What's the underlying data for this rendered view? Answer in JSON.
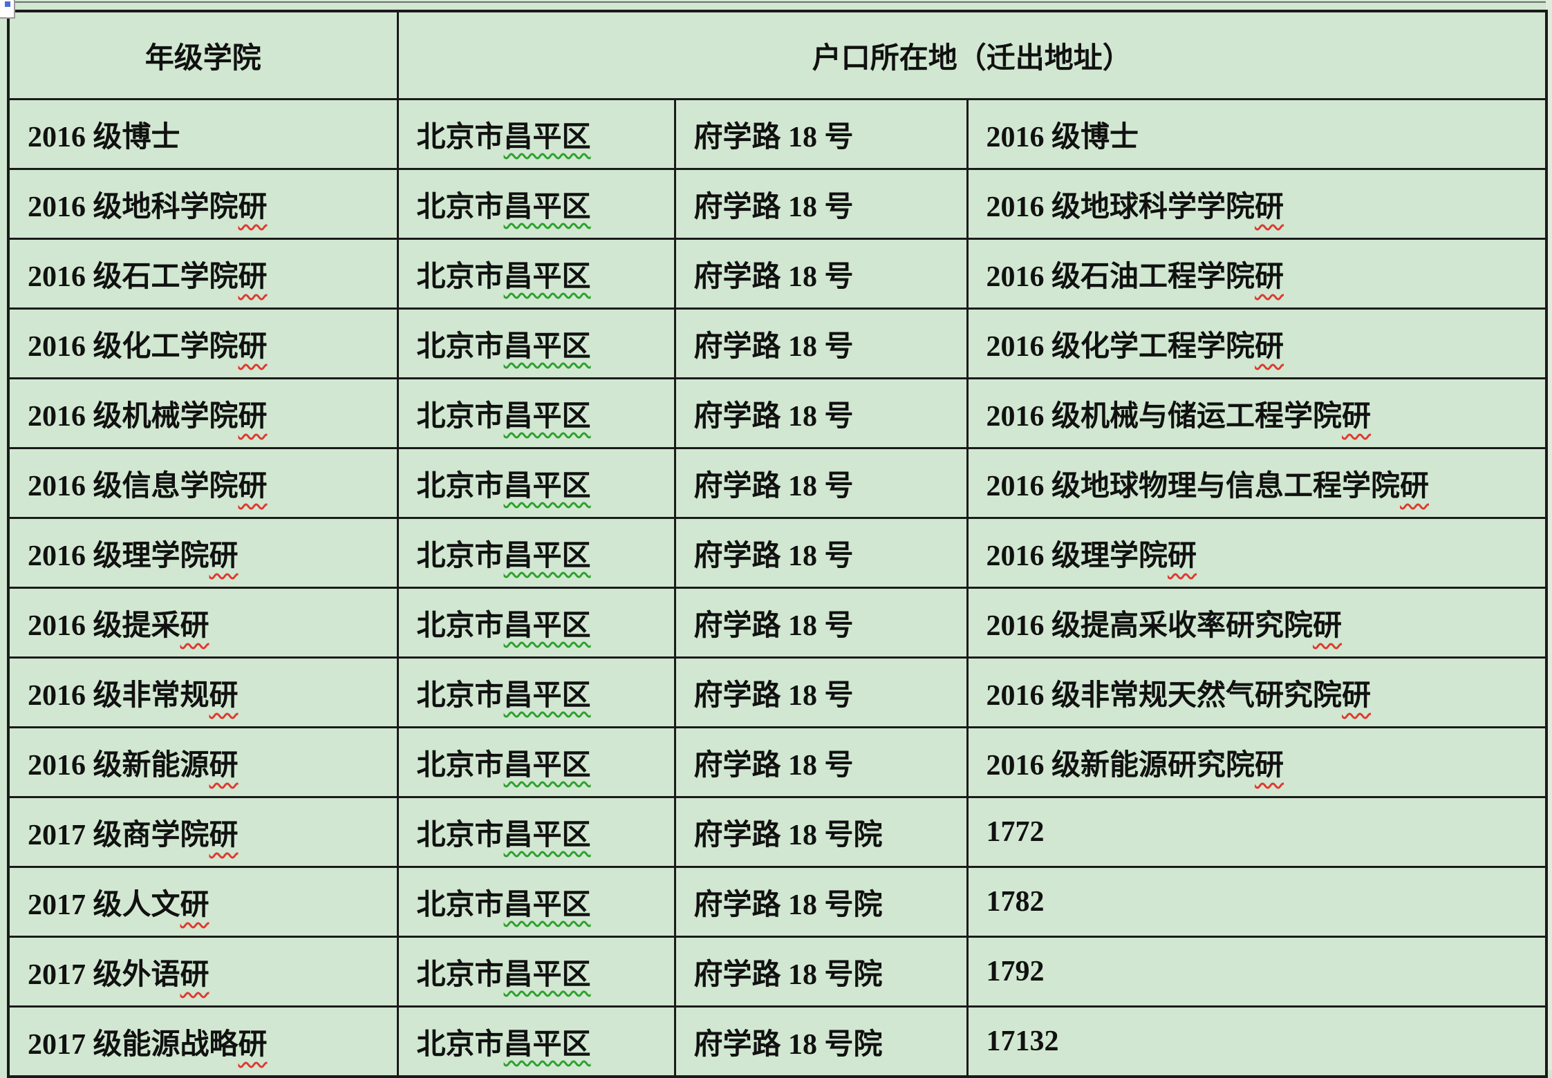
{
  "colors": {
    "page_background": "#d1e7d1",
    "table_border": "#1a1a1a",
    "text": "#111111",
    "spellcheck_red": "#e0392e",
    "grammar_green": "#2da12d",
    "corner_artifact_fill": "#ffffff",
    "corner_artifact_dot": "#4a6fd4"
  },
  "table": {
    "header": {
      "grade_college": "年级学院",
      "residence": "户口所在地（迁出地址）"
    },
    "rows": [
      {
        "grade_college": [
          {
            "text": "2016 级博士",
            "mark": ""
          }
        ],
        "city_district": [
          {
            "text": "北京市",
            "mark": ""
          },
          {
            "text": "昌平区",
            "mark": "green"
          }
        ],
        "street": [
          {
            "text": "府学路 18 号",
            "mark": ""
          }
        ],
        "unit": [
          {
            "text": "2016 级博士",
            "mark": ""
          }
        ]
      },
      {
        "grade_college": [
          {
            "text": "2016 级地科学院",
            "mark": ""
          },
          {
            "text": "研",
            "mark": "red"
          }
        ],
        "city_district": [
          {
            "text": "北京市",
            "mark": ""
          },
          {
            "text": "昌平区",
            "mark": "green"
          }
        ],
        "street": [
          {
            "text": "府学路 18 号",
            "mark": ""
          }
        ],
        "unit": [
          {
            "text": "2016 级地球科学学院",
            "mark": ""
          },
          {
            "text": "研",
            "mark": "red"
          }
        ]
      },
      {
        "grade_college": [
          {
            "text": "2016 级石工学院",
            "mark": ""
          },
          {
            "text": "研",
            "mark": "red"
          }
        ],
        "city_district": [
          {
            "text": "北京市",
            "mark": ""
          },
          {
            "text": "昌平区",
            "mark": "green"
          }
        ],
        "street": [
          {
            "text": "府学路 18 号",
            "mark": ""
          }
        ],
        "unit": [
          {
            "text": "2016 级石油工程学院",
            "mark": ""
          },
          {
            "text": "研",
            "mark": "red"
          }
        ]
      },
      {
        "grade_college": [
          {
            "text": "2016 级化工学院",
            "mark": ""
          },
          {
            "text": "研",
            "mark": "red"
          }
        ],
        "city_district": [
          {
            "text": "北京市",
            "mark": ""
          },
          {
            "text": "昌平区",
            "mark": "green"
          }
        ],
        "street": [
          {
            "text": "府学路 18 号",
            "mark": ""
          }
        ],
        "unit": [
          {
            "text": "2016 级化学工程学院",
            "mark": ""
          },
          {
            "text": "研",
            "mark": "red"
          }
        ]
      },
      {
        "grade_college": [
          {
            "text": "2016 级机械学院",
            "mark": ""
          },
          {
            "text": "研",
            "mark": "red"
          }
        ],
        "city_district": [
          {
            "text": "北京市",
            "mark": ""
          },
          {
            "text": "昌平区",
            "mark": "green"
          }
        ],
        "street": [
          {
            "text": "府学路 18 号",
            "mark": ""
          }
        ],
        "unit": [
          {
            "text": "2016 级机械与储运工程学院",
            "mark": ""
          },
          {
            "text": "研",
            "mark": "red"
          }
        ]
      },
      {
        "grade_college": [
          {
            "text": "2016 级信息学院",
            "mark": ""
          },
          {
            "text": "研",
            "mark": "red"
          }
        ],
        "city_district": [
          {
            "text": "北京市",
            "mark": ""
          },
          {
            "text": "昌平区",
            "mark": "green"
          }
        ],
        "street": [
          {
            "text": "府学路 18 号",
            "mark": ""
          }
        ],
        "unit": [
          {
            "text": "2016 级地球物理与信息工程学院",
            "mark": ""
          },
          {
            "text": "研",
            "mark": "red"
          }
        ]
      },
      {
        "grade_college": [
          {
            "text": "2016 级理学院",
            "mark": ""
          },
          {
            "text": "研",
            "mark": "red"
          }
        ],
        "city_district": [
          {
            "text": "北京市",
            "mark": ""
          },
          {
            "text": "昌平区",
            "mark": "green"
          }
        ],
        "street": [
          {
            "text": "府学路 18 号",
            "mark": ""
          }
        ],
        "unit": [
          {
            "text": "2016 级理学院",
            "mark": ""
          },
          {
            "text": "研",
            "mark": "red"
          }
        ]
      },
      {
        "grade_college": [
          {
            "text": "2016 级提采",
            "mark": ""
          },
          {
            "text": "研",
            "mark": "red"
          }
        ],
        "city_district": [
          {
            "text": "北京市",
            "mark": ""
          },
          {
            "text": "昌平区",
            "mark": "green"
          }
        ],
        "street": [
          {
            "text": "府学路 18 号",
            "mark": ""
          }
        ],
        "unit": [
          {
            "text": "2016 级提高采收率研究院",
            "mark": ""
          },
          {
            "text": "研",
            "mark": "red"
          }
        ]
      },
      {
        "grade_college": [
          {
            "text": "2016 级非常规",
            "mark": ""
          },
          {
            "text": "研",
            "mark": "red"
          }
        ],
        "city_district": [
          {
            "text": "北京市",
            "mark": ""
          },
          {
            "text": "昌平区",
            "mark": "green"
          }
        ],
        "street": [
          {
            "text": "府学路 18 号",
            "mark": ""
          }
        ],
        "unit": [
          {
            "text": "2016 级非常规天然气研究院",
            "mark": ""
          },
          {
            "text": "研",
            "mark": "red"
          }
        ]
      },
      {
        "grade_college": [
          {
            "text": "2016 级新能源",
            "mark": ""
          },
          {
            "text": "研",
            "mark": "red"
          }
        ],
        "city_district": [
          {
            "text": "北京市",
            "mark": ""
          },
          {
            "text": "昌平区",
            "mark": "green"
          }
        ],
        "street": [
          {
            "text": "府学路 18 号",
            "mark": ""
          }
        ],
        "unit": [
          {
            "text": "2016 级新能源研究院",
            "mark": ""
          },
          {
            "text": "研",
            "mark": "red"
          }
        ]
      },
      {
        "grade_college": [
          {
            "text": "2017 级商学院",
            "mark": ""
          },
          {
            "text": "研",
            "mark": "red"
          }
        ],
        "city_district": [
          {
            "text": "北京市",
            "mark": ""
          },
          {
            "text": "昌平区",
            "mark": "green"
          }
        ],
        "street": [
          {
            "text": "府学路 18 号院",
            "mark": ""
          }
        ],
        "unit": [
          {
            "text": "1772",
            "mark": ""
          }
        ]
      },
      {
        "grade_college": [
          {
            "text": "2017 级人文",
            "mark": ""
          },
          {
            "text": "研",
            "mark": "red"
          }
        ],
        "city_district": [
          {
            "text": "北京市",
            "mark": ""
          },
          {
            "text": "昌平区",
            "mark": "green"
          }
        ],
        "street": [
          {
            "text": "府学路 18 号院",
            "mark": ""
          }
        ],
        "unit": [
          {
            "text": "1782",
            "mark": ""
          }
        ]
      },
      {
        "grade_college": [
          {
            "text": "2017 级外语",
            "mark": ""
          },
          {
            "text": "研",
            "mark": "red"
          }
        ],
        "city_district": [
          {
            "text": "北京市",
            "mark": ""
          },
          {
            "text": "昌平区",
            "mark": "green"
          }
        ],
        "street": [
          {
            "text": "府学路 18 号院",
            "mark": ""
          }
        ],
        "unit": [
          {
            "text": "1792",
            "mark": ""
          }
        ]
      },
      {
        "grade_college": [
          {
            "text": "2017 级能源战略",
            "mark": ""
          },
          {
            "text": "研",
            "mark": "red"
          }
        ],
        "city_district": [
          {
            "text": "北京市",
            "mark": ""
          },
          {
            "text": "昌平区",
            "mark": "green"
          }
        ],
        "street": [
          {
            "text": "府学路 18 号院",
            "mark": ""
          }
        ],
        "unit": [
          {
            "text": "17132",
            "mark": ""
          }
        ]
      }
    ]
  }
}
